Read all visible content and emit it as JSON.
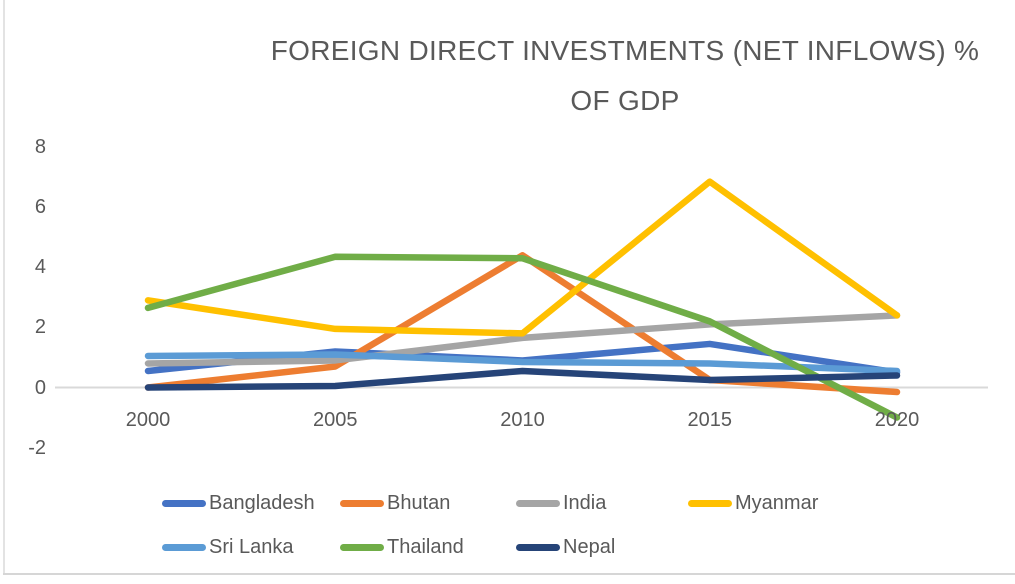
{
  "chart_data": {
    "type": "line",
    "title": "FOREIGN DIRECT INVESTMENTS  (NET INFLOWS) % OF GDP",
    "title_lines": [
      "FOREIGN DIRECT INVESTMENTS  (NET INFLOWS) %",
      "OF GDP"
    ],
    "xlabel": "",
    "ylabel": "",
    "categories": [
      "2000",
      "2005",
      "2010",
      "2015",
      "2020"
    ],
    "series": [
      {
        "name": "Bangladesh",
        "color": "#4472C4",
        "values": [
          0.55,
          1.2,
          0.9,
          1.45,
          0.5
        ]
      },
      {
        "name": "Bhutan",
        "color": "#ED7D31",
        "values": [
          0.0,
          0.7,
          4.4,
          0.25,
          -0.15
        ]
      },
      {
        "name": "India",
        "color": "#A5A5A5",
        "values": [
          0.8,
          0.9,
          1.65,
          2.1,
          2.4
        ]
      },
      {
        "name": "Myanmar",
        "color": "#FFC000",
        "values": [
          2.9,
          1.95,
          1.8,
          6.85,
          2.4
        ]
      },
      {
        "name": "Sri Lanka",
        "color": "#5B9BD5",
        "values": [
          1.05,
          1.1,
          0.85,
          0.8,
          0.55
        ]
      },
      {
        "name": "Thailand",
        "color": "#70AD47",
        "values": [
          2.65,
          4.35,
          4.3,
          2.2,
          -1.0
        ]
      },
      {
        "name": "Nepal",
        "color": "#264478",
        "values": [
          0.0,
          0.05,
          0.55,
          0.25,
          0.4
        ]
      }
    ],
    "ylim": [
      -2,
      8
    ],
    "yticks": [
      8,
      6,
      4,
      2,
      0,
      -2
    ],
    "grid": false,
    "axis_line_color": "#D9D9D9",
    "text_color": "#595959",
    "legend_position": "bottom",
    "legend_rows": [
      [
        "Bangladesh",
        "Bhutan",
        "India",
        "Myanmar"
      ],
      [
        "Sri Lanka",
        "Thailand",
        "Nepal"
      ]
    ]
  }
}
